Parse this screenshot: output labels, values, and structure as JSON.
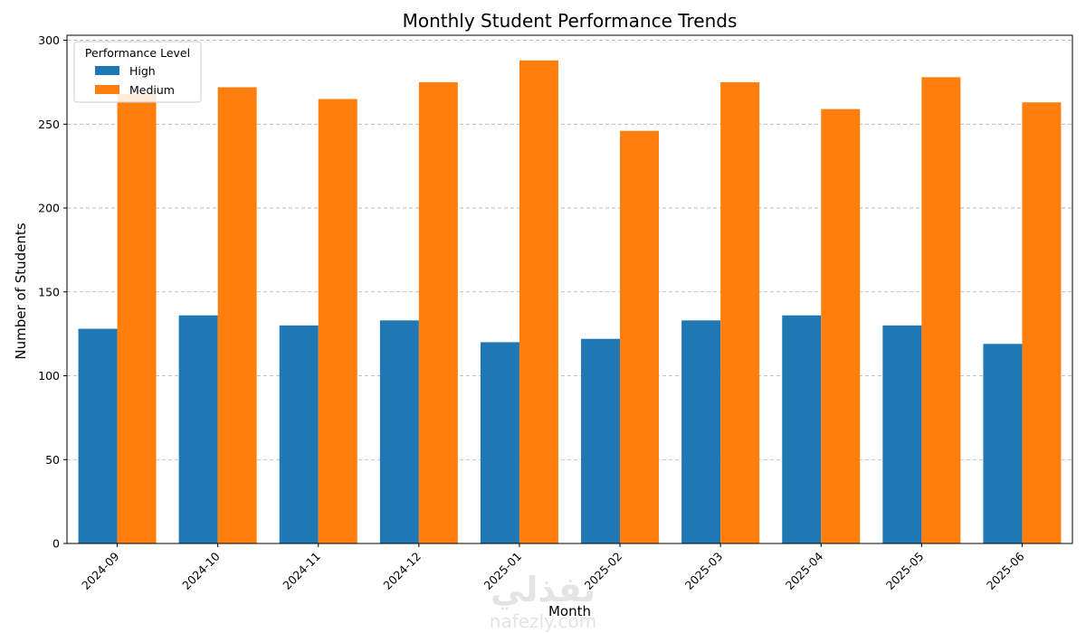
{
  "chart_data": {
    "type": "bar",
    "title": "Monthly Student Performance Trends",
    "xlabel": "Month",
    "ylabel": "Number of Students",
    "categories": [
      "2024-09",
      "2024-10",
      "2024-11",
      "2024-12",
      "2025-01",
      "2025-02",
      "2025-03",
      "2025-04",
      "2025-05",
      "2025-06"
    ],
    "series": [
      {
        "name": "High",
        "color": "#1f77b4",
        "values": [
          128,
          136,
          130,
          133,
          120,
          122,
          133,
          136,
          130,
          119
        ]
      },
      {
        "name": "Medium",
        "color": "#ff7f0e",
        "values": [
          268,
          272,
          265,
          275,
          288,
          246,
          275,
          259,
          278,
          263
        ]
      }
    ],
    "ylim": [
      0,
      303
    ],
    "yticks": [
      0,
      50,
      100,
      150,
      200,
      250,
      300
    ],
    "grid": "y-dashed",
    "legend_title": "Performance Level",
    "legend_position": "top-left",
    "x_tick_rotation": "45-degrees"
  },
  "watermark": {
    "arabic": "نفذلي",
    "latin": "nafezly.com"
  }
}
